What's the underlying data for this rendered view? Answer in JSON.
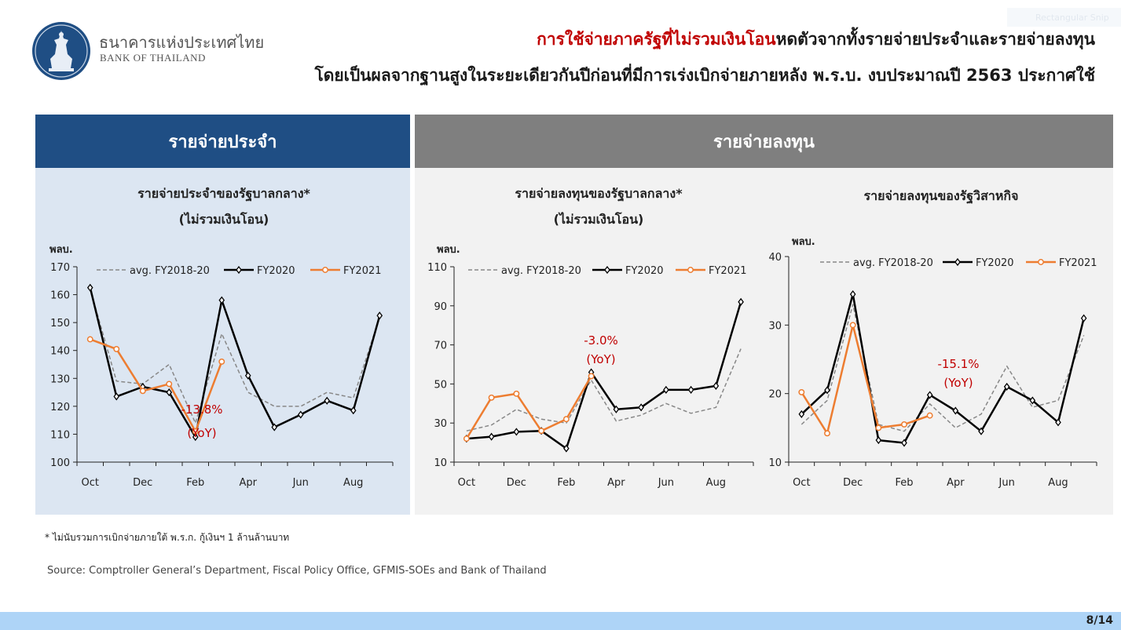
{
  "header": {
    "org_th": "ธนาคารแห่งประเทศไทย",
    "org_en": "BANK OF THAILAND",
    "title_highlight": "การใช้จ่ายภาครัฐที่ไม่รวมเงินโอน",
    "title_rest": "หดตัวจากทั้งรายจ่ายประจำและรายจ่ายลงทุน",
    "subtitle": "โดยเป็นผลจากฐานสูงในระยะเดียวกันปีก่อนที่มีการเร่งเบิกจ่ายภายหลัง พ.ร.บ. งบประมาณปี 2563 ประกาศใช้"
  },
  "faint_label": "Rectangular Snip",
  "panels": {
    "left_header": "รายจ่ายประจำ",
    "right_header": "รายจ่ายลงทุน"
  },
  "footer": {
    "note": "* ไม่นับรวมการเบิกจ่ายภายใต้ พ.ร.ก. กู้เงินฯ 1 ล้านล้านบาท",
    "source": "Source: Comptroller General’s Department, Fiscal Policy Office, GFMIS-SOEs and Bank of Thailand",
    "page": "8/14"
  },
  "colors": {
    "avg": "#888888",
    "fy2020": "#000000",
    "fy2021": "#ed7d31",
    "annotation": "#c00000"
  },
  "chart_data": [
    {
      "type": "line",
      "title": "รายจ่ายประจำของรัฐบาลกลาง*",
      "title2": "(ไม่รวมเงินโอน)",
      "ylabel": "พลบ.",
      "ylim": [
        100,
        170
      ],
      "yticks": [
        100,
        110,
        120,
        130,
        140,
        150,
        160,
        170
      ],
      "x": [
        "Oct",
        "Nov",
        "Dec",
        "Jan",
        "Feb",
        "Mar",
        "Apr",
        "May",
        "Jun",
        "Jul",
        "Aug",
        "Sep"
      ],
      "xticks": [
        "Oct",
        "Dec",
        "Feb",
        "Apr",
        "Jun",
        "Aug"
      ],
      "series": [
        {
          "name": "avg. FY2018-20",
          "values": [
            162,
            129,
            128,
            135,
            114,
            146,
            125,
            120,
            120,
            125,
            123,
            152
          ]
        },
        {
          "name": "FY2020",
          "values": [
            162.5,
            123.5,
            127,
            125,
            109,
            158,
            131,
            112.5,
            117,
            122,
            118.5,
            152.5
          ]
        },
        {
          "name": "FY2021",
          "values": [
            144,
            140.5,
            125.5,
            128,
            111,
            136,
            null,
            null,
            null,
            null,
            null,
            null
          ]
        }
      ],
      "annotation": {
        "text1": "-13.8%",
        "text2": "(YoY)"
      }
    },
    {
      "type": "line",
      "title": "รายจ่ายลงทุนของรัฐบาลกลาง*",
      "title2": "(ไม่รวมเงินโอน)",
      "ylabel": "พลบ.",
      "ylim": [
        10,
        110
      ],
      "yticks": [
        10,
        30,
        50,
        70,
        90,
        110
      ],
      "x": [
        "Oct",
        "Nov",
        "Dec",
        "Jan",
        "Feb",
        "Mar",
        "Apr",
        "May",
        "Jun",
        "Jul",
        "Aug",
        "Sep"
      ],
      "xticks": [
        "Oct",
        "Dec",
        "Feb",
        "Apr",
        "Jun",
        "Aug"
      ],
      "series": [
        {
          "name": "avg. FY2018-20",
          "values": [
            26,
            29,
            37,
            32,
            30,
            52,
            31,
            34,
            40,
            35,
            38,
            68
          ]
        },
        {
          "name": "FY2020",
          "values": [
            22,
            23,
            25.5,
            26,
            17,
            56,
            37,
            38,
            47,
            47,
            49,
            92
          ]
        },
        {
          "name": "FY2021",
          "values": [
            22,
            43,
            45,
            26,
            32,
            54,
            null,
            null,
            null,
            null,
            null,
            null
          ]
        }
      ],
      "annotation": {
        "text1": "-3.0%",
        "text2": "(YoY)"
      }
    },
    {
      "type": "line",
      "title": "รายจ่ายลงทุนของรัฐวิสาหกิจ",
      "title2": "",
      "ylabel": "พลบ.",
      "ylim": [
        10,
        40
      ],
      "yticks": [
        10,
        20,
        30,
        40
      ],
      "x": [
        "Oct",
        "Nov",
        "Dec",
        "Jan",
        "Feb",
        "Mar",
        "Apr",
        "May",
        "Jun",
        "Jul",
        "Aug",
        "Sep"
      ],
      "xticks": [
        "Oct",
        "Dec",
        "Feb",
        "Apr",
        "Jun",
        "Aug"
      ],
      "series": [
        {
          "name": "avg. FY2018-20",
          "values": [
            15.5,
            19,
            33,
            15.5,
            14.5,
            18.5,
            15,
            17,
            24,
            18,
            19,
            28.5
          ]
        },
        {
          "name": "FY2020",
          "values": [
            17,
            20.5,
            34.5,
            13.2,
            12.8,
            19.8,
            17.5,
            14.5,
            21,
            19,
            15.8,
            31
          ]
        },
        {
          "name": "FY2021",
          "values": [
            20.2,
            14.2,
            30,
            15,
            15.5,
            16.8,
            null,
            null,
            null,
            null,
            null,
            null
          ]
        }
      ],
      "annotation": {
        "text1": "-15.1%",
        "text2": "(YoY)"
      }
    }
  ]
}
